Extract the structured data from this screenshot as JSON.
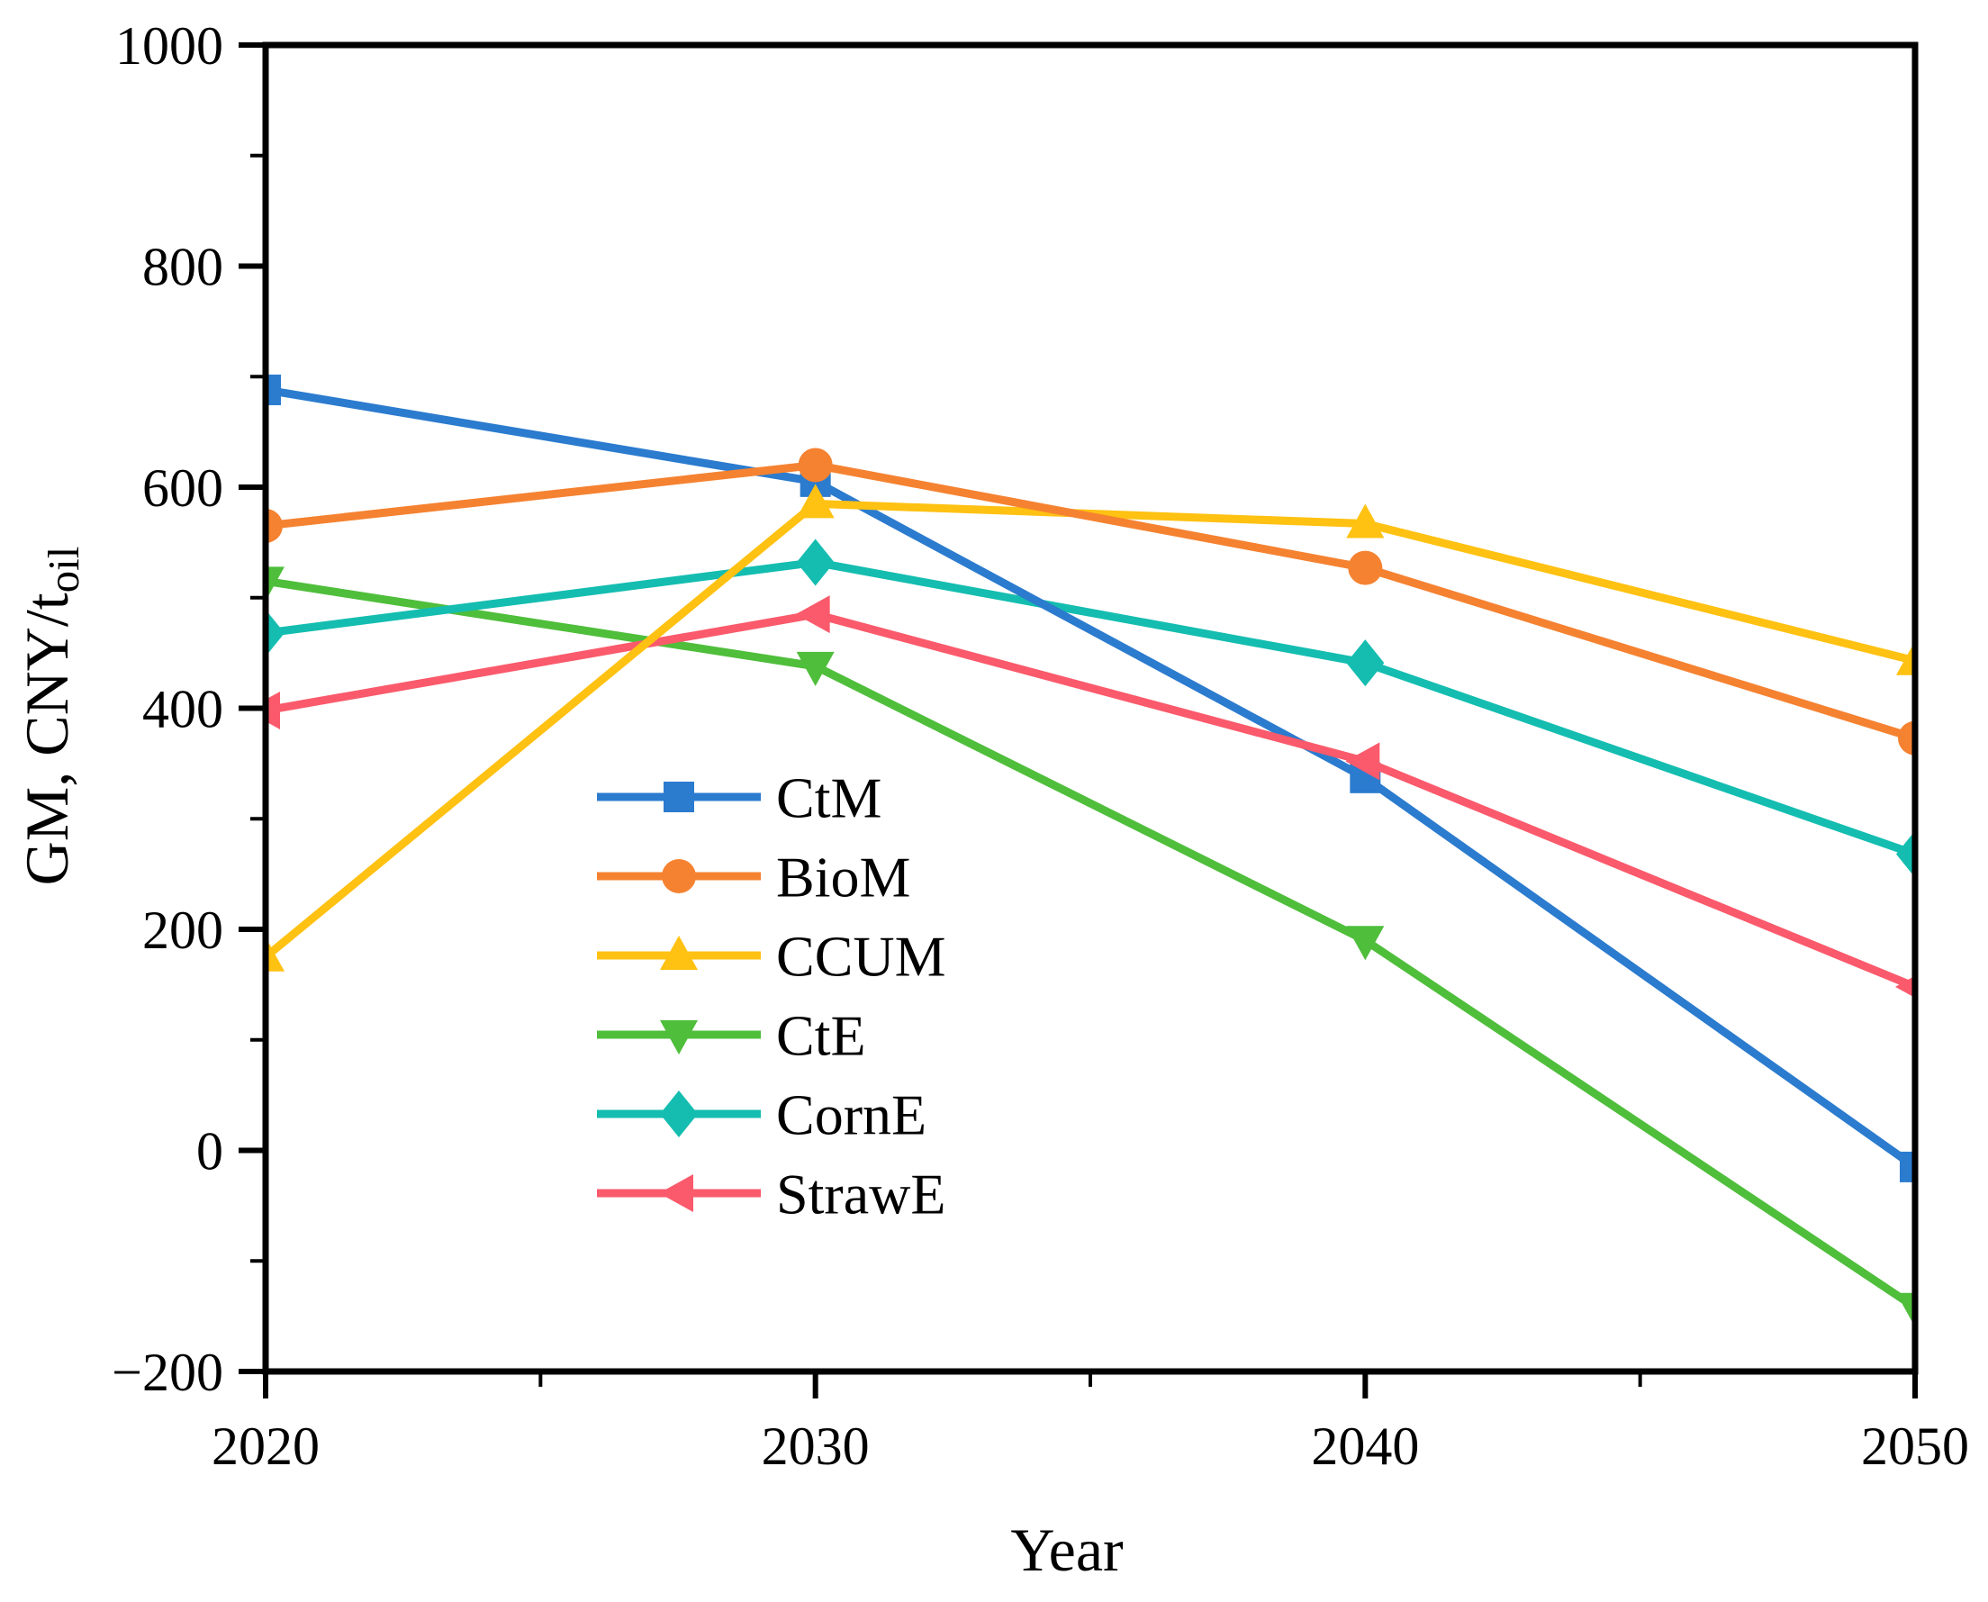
{
  "chart_data": {
    "type": "line",
    "title": "",
    "xlabel": "Year",
    "ylabel": "GM, CNY/t_oil",
    "ylabel_main": "GM, CNY/t",
    "ylabel_subscript": "oil",
    "xlim": [
      2020,
      2050
    ],
    "ylim": [
      -200,
      1000
    ],
    "x": [
      2020,
      2030,
      2040,
      2050
    ],
    "xticks_major": [
      2020,
      2030,
      2040,
      2050
    ],
    "xticks_minor": [
      2025,
      2035,
      2045
    ],
    "yticks_major": [
      1000,
      800,
      600,
      400,
      200,
      0,
      -200
    ],
    "yticks_minor": [
      900,
      700,
      500,
      300,
      100,
      -100
    ],
    "grid": false,
    "legend_position": "inside-center-left",
    "axis_color": "#000000",
    "background_color": "#ffffff",
    "series": [
      {
        "name": "CtM",
        "marker": "square",
        "color": "#2B7BCE",
        "values": [
          688,
          605,
          337,
          -15
        ]
      },
      {
        "name": "BioM",
        "marker": "circle",
        "color": "#F58231",
        "values": [
          565,
          620,
          527,
          373
        ]
      },
      {
        "name": "CCUM",
        "marker": "triangle-up",
        "color": "#FFC112",
        "values": [
          175,
          585,
          567,
          443
        ]
      },
      {
        "name": "CtE",
        "marker": "triangle-down",
        "color": "#4FBE3B",
        "values": [
          515,
          438,
          190,
          -142
        ]
      },
      {
        "name": "CornE",
        "marker": "diamond",
        "color": "#14BDB0",
        "values": [
          468,
          532,
          441,
          268
        ]
      },
      {
        "name": "StrawE",
        "marker": "triangle-left",
        "color": "#FA5A6B",
        "values": [
          398,
          485,
          352,
          148
        ]
      }
    ],
    "draw_order": [
      "CtE",
      "CornE",
      "CtM",
      "StrawE",
      "CCUM",
      "BioM"
    ]
  }
}
